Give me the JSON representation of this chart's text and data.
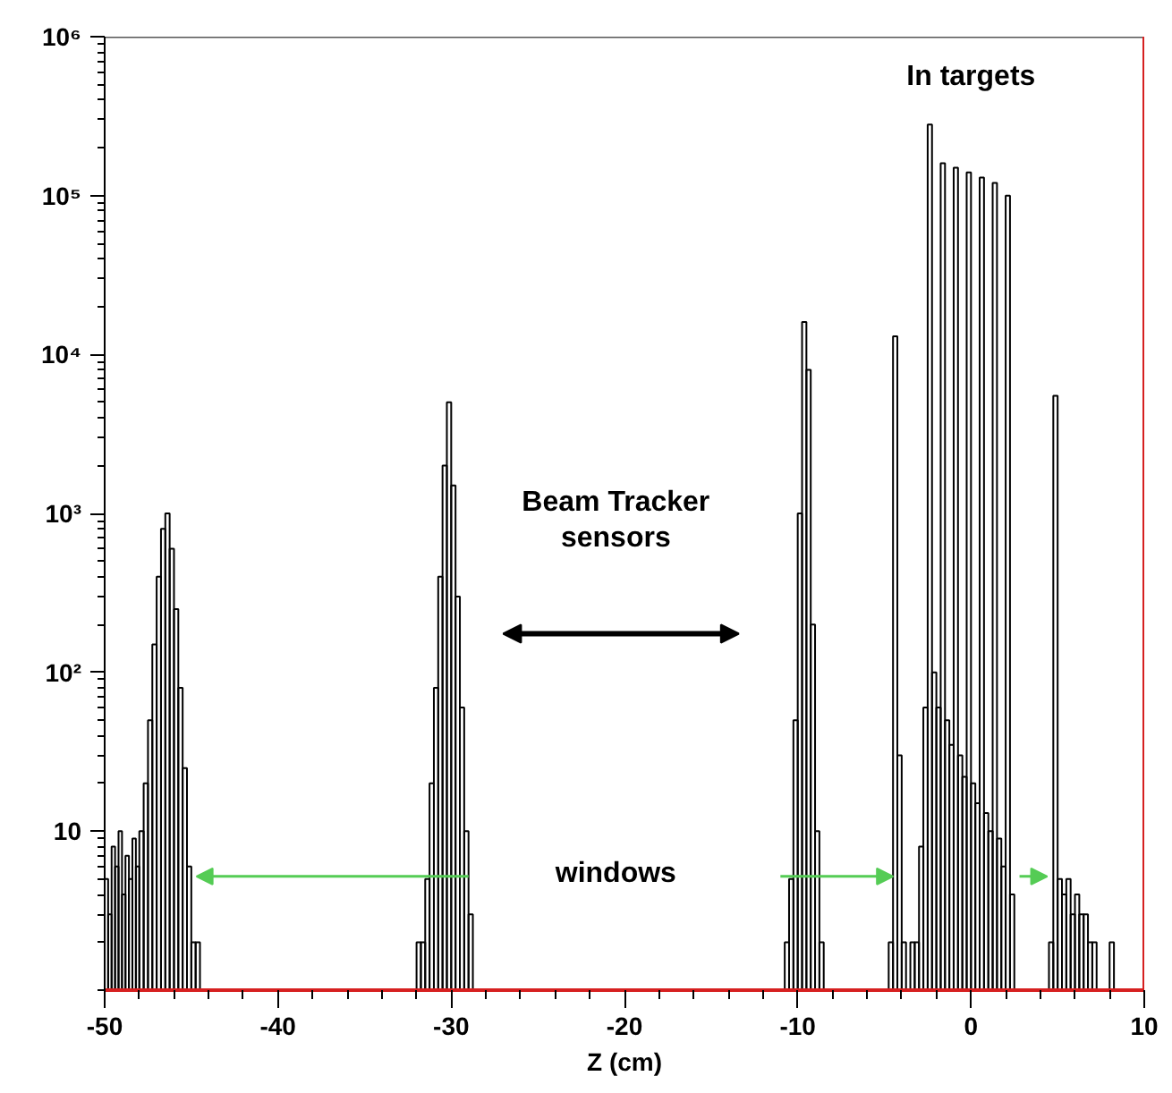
{
  "chart_data": {
    "type": "histogram",
    "xlabel": "Z (cm)",
    "log": true,
    "grid": false,
    "color": "#000000",
    "bins": [
      -50,
      -49.8,
      -49.6,
      -49.4,
      -49.2,
      -49,
      -48.8,
      -48.6,
      -48.4,
      -48.2,
      -48,
      -47.75,
      -47.5,
      -47.25,
      -47,
      -46.75,
      -46.5,
      -46.25,
      -46,
      -45.75,
      -45.5,
      -45.25,
      -45,
      -44.75,
      -44.5,
      -32,
      -31.75,
      -31.5,
      -31.25,
      -31,
      -30.75,
      -30.5,
      -30.25,
      -30,
      -29.75,
      -29.5,
      -29.25,
      -29,
      -28.75,
      -10.75,
      -10.5,
      -10.25,
      -10,
      -9.75,
      -9.5,
      -9.25,
      -9,
      -8.75,
      -8.5,
      -4.75,
      -4.5,
      -4.25,
      -4,
      -3.75,
      -3.5,
      -3.25,
      -3,
      -2.75,
      -2.5,
      -2.25,
      -2,
      -1.75,
      -1.5,
      -1.25,
      -1,
      -0.75,
      -0.5,
      -0.25,
      0,
      0.25,
      0.5,
      0.75,
      1,
      1.25,
      1.5,
      1.75,
      2,
      2.25,
      2.5,
      4.5,
      4.75,
      5,
      5.25,
      5.5,
      5.75,
      6,
      6.25,
      6.5,
      6.75,
      7,
      7.25,
      8,
      8.25
    ],
    "values": [
      5,
      3,
      8,
      6,
      10,
      4,
      7,
      5,
      9,
      6,
      10,
      20,
      50,
      150,
      400,
      800,
      1000,
      600,
      250,
      80,
      25,
      6,
      2,
      2,
      null,
      2,
      2,
      5,
      20,
      80,
      400,
      2000,
      5000,
      1500,
      300,
      60,
      10,
      3,
      null,
      2,
      5,
      50,
      1000,
      16000,
      8000,
      200,
      10,
      2,
      null,
      2,
      13000,
      30,
      2,
      null,
      2,
      2,
      8,
      60,
      280000,
      100,
      60,
      160000,
      50,
      35,
      150000,
      30,
      22,
      140000,
      20,
      15,
      130000,
      13,
      10,
      120000,
      9,
      6,
      100000,
      4,
      null,
      2,
      5500,
      5,
      4,
      5,
      3,
      4,
      3,
      3,
      2,
      2,
      null,
      2
    ],
    "xlim": [
      -50,
      10
    ],
    "ylim": [
      1,
      1000000
    ],
    "xticks": [
      -50,
      -40,
      -30,
      -20,
      -10,
      0,
      10
    ],
    "yticks": [
      {
        "value": 10,
        "label": "10"
      },
      {
        "value": 100,
        "label": "10²"
      },
      {
        "value": 1000,
        "label": "10³"
      },
      {
        "value": 10000,
        "label": "10⁴"
      },
      {
        "value": 100000,
        "label": "10⁵"
      },
      {
        "value": 1000000,
        "label": "10⁶"
      }
    ],
    "annotations": [
      "In targets",
      "Beam Tracker\nsensors",
      "windows"
    ]
  }
}
